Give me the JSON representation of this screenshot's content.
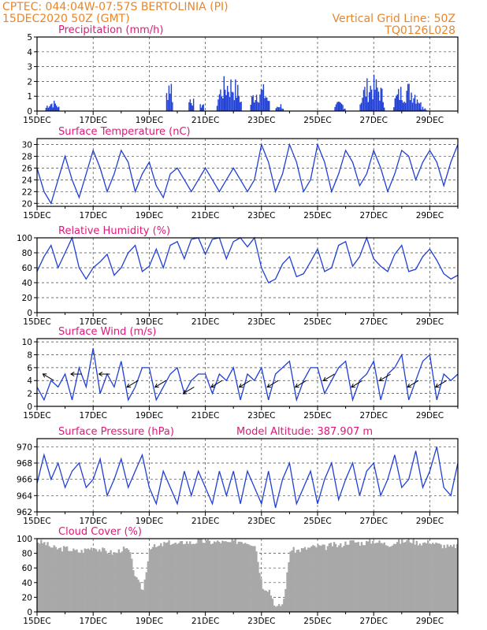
{
  "header": {
    "left1": "CPTEC:  044:04W-07:57S  BERTOLINIA (PI)",
    "left2": "15DEC2020 50Z (GMT)",
    "right1": "Vertical Grid Line: 50Z",
    "right2": "TQ0126L028"
  },
  "x_labels": [
    "15DEC",
    "17DEC",
    "19DEC",
    "21DEC",
    "23DEC",
    "25DEC",
    "27DEC",
    "29DEC"
  ],
  "colors": {
    "line": "#1f3fd6",
    "cloud": "#a8a8a8",
    "title": "#e0187a",
    "header": "#e8862a"
  },
  "chart_data": [
    {
      "id": "precip",
      "type": "bar",
      "title": "Precipitation (mm/h)",
      "ylim": [
        0,
        5
      ],
      "yticks": [
        0,
        1,
        2,
        3,
        4,
        5
      ],
      "events": [
        {
          "t": 0.3,
          "w": 0.5,
          "peak": 0.8
        },
        {
          "t": 4.6,
          "w": 0.25,
          "peak": 2.8
        },
        {
          "t": 5.4,
          "w": 0.2,
          "peak": 1.4
        },
        {
          "t": 5.8,
          "w": 0.15,
          "peak": 0.7
        },
        {
          "t": 6.4,
          "w": 0.9,
          "peak": 2.6
        },
        {
          "t": 7.6,
          "w": 0.7,
          "peak": 2.0
        },
        {
          "t": 8.5,
          "w": 0.3,
          "peak": 0.6
        },
        {
          "t": 10.6,
          "w": 0.4,
          "peak": 0.7
        },
        {
          "t": 11.5,
          "w": 0.9,
          "peak": 2.5
        },
        {
          "t": 12.7,
          "w": 1.0,
          "peak": 2.1
        },
        {
          "t": 13.6,
          "w": 0.3,
          "peak": 0.4
        }
      ]
    },
    {
      "id": "temp",
      "type": "line",
      "title": "Surface Temperature (nC)",
      "ylim": [
        19.5,
        31
      ],
      "yticks": [
        20,
        22,
        24,
        26,
        28,
        30
      ],
      "x": [
        0,
        0.25,
        0.5,
        0.75,
        1,
        1.25,
        1.5,
        1.75,
        2,
        2.25,
        2.5,
        2.75,
        3,
        3.25,
        3.5,
        3.75,
        4,
        4.25,
        4.5,
        4.75,
        5,
        5.25,
        5.5,
        5.75,
        6,
        6.25,
        6.5,
        6.75,
        7,
        7.25,
        7.5,
        7.75,
        8,
        8.25,
        8.5,
        8.75,
        9,
        9.25,
        9.5,
        9.75,
        10,
        10.25,
        10.5,
        10.75,
        11,
        11.25,
        11.5,
        11.75,
        12,
        12.25,
        12.5,
        12.75,
        13,
        13.25,
        13.5,
        13.75,
        14,
        14.25,
        14.5,
        14.75,
        15
      ],
      "values": [
        26,
        22,
        20,
        24,
        28,
        24,
        21,
        25,
        29,
        26,
        22,
        25,
        29,
        27,
        22,
        25,
        27,
        23,
        21,
        25,
        26,
        24,
        22,
        24,
        26,
        24,
        22,
        24,
        26,
        24,
        22,
        24,
        30,
        27,
        22,
        25,
        30,
        27,
        22,
        24,
        30,
        27,
        22,
        25,
        29,
        27,
        23,
        25,
        29,
        26,
        22,
        25,
        29,
        28,
        24,
        27,
        29,
        27,
        23,
        27,
        30
      ]
    },
    {
      "id": "rh",
      "type": "line",
      "title": "Relative Humidity (%)",
      "ylim": [
        0,
        100
      ],
      "yticks": [
        0,
        20,
        40,
        60,
        80,
        100
      ],
      "x": [
        0,
        0.25,
        0.5,
        0.75,
        1,
        1.25,
        1.5,
        1.75,
        2,
        2.25,
        2.5,
        2.75,
        3,
        3.25,
        3.5,
        3.75,
        4,
        4.25,
        4.5,
        4.75,
        5,
        5.25,
        5.5,
        5.75,
        6,
        6.25,
        6.5,
        6.75,
        7,
        7.25,
        7.5,
        7.75,
        8,
        8.25,
        8.5,
        8.75,
        9,
        9.25,
        9.5,
        9.75,
        10,
        10.25,
        10.5,
        10.75,
        11,
        11.25,
        11.5,
        11.75,
        12,
        12.25,
        12.5,
        12.75,
        13,
        13.25,
        13.5,
        13.75,
        14,
        14.25,
        14.5,
        14.75,
        15
      ],
      "values": [
        55,
        75,
        90,
        60,
        80,
        100,
        60,
        45,
        60,
        68,
        78,
        50,
        60,
        80,
        90,
        55,
        62,
        85,
        60,
        90,
        95,
        72,
        98,
        100,
        78,
        98,
        100,
        72,
        95,
        100,
        88,
        100,
        60,
        40,
        45,
        65,
        75,
        48,
        52,
        68,
        85,
        55,
        60,
        90,
        95,
        62,
        75,
        100,
        72,
        62,
        55,
        78,
        90,
        55,
        58,
        75,
        85,
        70,
        52,
        45,
        50
      ]
    },
    {
      "id": "wind",
      "type": "line",
      "title": "Surface Wind (m/s)",
      "ylim": [
        0,
        10.5
      ],
      "yticks": [
        0,
        2,
        4,
        6,
        8,
        10
      ],
      "x": [
        0,
        0.25,
        0.5,
        0.75,
        1,
        1.25,
        1.5,
        1.75,
        2,
        2.25,
        2.5,
        2.75,
        3,
        3.25,
        3.5,
        3.75,
        4,
        4.25,
        4.5,
        4.75,
        5,
        5.25,
        5.5,
        5.75,
        6,
        6.25,
        6.5,
        6.75,
        7,
        7.25,
        7.5,
        7.75,
        8,
        8.25,
        8.5,
        8.75,
        9,
        9.25,
        9.5,
        9.75,
        10,
        10.25,
        10.5,
        10.75,
        11,
        11.25,
        11.5,
        11.75,
        12,
        12.25,
        12.5,
        12.75,
        13,
        13.25,
        13.5,
        13.75,
        14,
        14.25,
        14.5,
        14.75,
        15
      ],
      "values": [
        3,
        1,
        4,
        3,
        5,
        1,
        6,
        3,
        9,
        2,
        5,
        3,
        7,
        1,
        3,
        6,
        6,
        1,
        3,
        5,
        6,
        2,
        4,
        5,
        5,
        2,
        5,
        4,
        6,
        1,
        5,
        4,
        6,
        1,
        5,
        6,
        7,
        1,
        4,
        6,
        6,
        2,
        4,
        6,
        7,
        1,
        4,
        5,
        7,
        1,
        5,
        6,
        8,
        1,
        4,
        7,
        8,
        1,
        5,
        4,
        5
      ],
      "vectors": [
        {
          "t": 0.6,
          "speed": 4,
          "dir": "NW"
        },
        {
          "t": 1.6,
          "speed": 5,
          "dir": "W"
        },
        {
          "t": 2.6,
          "speed": 5,
          "dir": "W"
        },
        {
          "t": 3.6,
          "speed": 4,
          "dir": "SW"
        },
        {
          "t": 4.6,
          "speed": 4,
          "dir": "SW"
        },
        {
          "t": 5.6,
          "speed": 3,
          "dir": "SW"
        },
        {
          "t": 6.6,
          "speed": 4,
          "dir": "SW"
        },
        {
          "t": 7.6,
          "speed": 4,
          "dir": "SW"
        },
        {
          "t": 8.6,
          "speed": 4,
          "dir": "SW"
        },
        {
          "t": 9.6,
          "speed": 4,
          "dir": "SW"
        },
        {
          "t": 10.6,
          "speed": 5,
          "dir": "SW"
        },
        {
          "t": 11.6,
          "speed": 4,
          "dir": "SW"
        },
        {
          "t": 12.6,
          "speed": 5,
          "dir": "SW"
        },
        {
          "t": 13.6,
          "speed": 4,
          "dir": "SW"
        },
        {
          "t": 14.6,
          "speed": 4,
          "dir": "SW"
        }
      ]
    },
    {
      "id": "press",
      "type": "line",
      "title": "Surface Pressure (hPa)",
      "subtitle": "Model Altitude: 387.907 m",
      "ylim": [
        962,
        971
      ],
      "yticks": [
        962,
        964,
        966,
        968,
        970
      ],
      "x": [
        0,
        0.25,
        0.5,
        0.75,
        1,
        1.25,
        1.5,
        1.75,
        2,
        2.25,
        2.5,
        2.75,
        3,
        3.25,
        3.5,
        3.75,
        4,
        4.25,
        4.5,
        4.75,
        5,
        5.25,
        5.5,
        5.75,
        6,
        6.25,
        6.5,
        6.75,
        7,
        7.25,
        7.5,
        7.75,
        8,
        8.25,
        8.5,
        8.75,
        9,
        9.25,
        9.5,
        9.75,
        10,
        10.25,
        10.5,
        10.75,
        11,
        11.25,
        11.5,
        11.75,
        12,
        12.25,
        12.5,
        12.75,
        13,
        13.25,
        13.5,
        13.75,
        14,
        14.25,
        14.5,
        14.75,
        15
      ],
      "values": [
        965.5,
        969,
        966,
        968,
        965,
        967,
        968,
        965,
        966,
        968.5,
        964,
        966,
        968.5,
        965,
        967,
        969,
        965,
        963,
        967,
        965,
        963,
        967,
        964,
        967,
        965,
        963,
        967,
        964,
        967,
        963,
        967,
        965,
        963,
        967,
        962.5,
        966,
        968,
        963,
        965,
        967,
        963,
        966,
        968,
        963.5,
        966,
        968,
        964,
        967,
        968,
        964,
        966,
        969,
        965,
        966,
        969.5,
        965,
        967,
        970,
        965,
        964,
        968
      ]
    },
    {
      "id": "cloud",
      "type": "area",
      "title": "Cloud Cover (%)",
      "ylim": [
        0,
        100
      ],
      "yticks": [
        0,
        20,
        40,
        60,
        80,
        100
      ],
      "x": [
        0,
        0.25,
        0.5,
        0.75,
        1,
        1.25,
        1.5,
        1.75,
        2,
        2.25,
        2.5,
        2.75,
        3,
        3.25,
        3.5,
        3.75,
        4,
        4.25,
        4.5,
        4.75,
        5,
        5.25,
        5.5,
        5.75,
        6,
        6.25,
        6.5,
        6.75,
        7,
        7.25,
        7.5,
        7.75,
        8,
        8.25,
        8.5,
        8.75,
        9,
        9.25,
        9.5,
        9.75,
        10,
        10.25,
        10.5,
        10.75,
        11,
        11.25,
        11.5,
        11.75,
        12,
        12.25,
        12.5,
        12.75,
        13,
        13.25,
        13.5,
        13.75,
        14,
        14.25,
        14.5,
        14.75,
        15
      ],
      "values": [
        96,
        94,
        88,
        86,
        87,
        84,
        82,
        86,
        88,
        85,
        82,
        80,
        86,
        84,
        45,
        30,
        90,
        88,
        93,
        95,
        92,
        96,
        94,
        97,
        96,
        95,
        96,
        94,
        96,
        97,
        95,
        92,
        35,
        30,
        5,
        12,
        85,
        84,
        86,
        88,
        90,
        88,
        92,
        90,
        95,
        96,
        94,
        95,
        97,
        94,
        92,
        95,
        96,
        98,
        95,
        94,
        96,
        92,
        90,
        88,
        92
      ]
    }
  ]
}
